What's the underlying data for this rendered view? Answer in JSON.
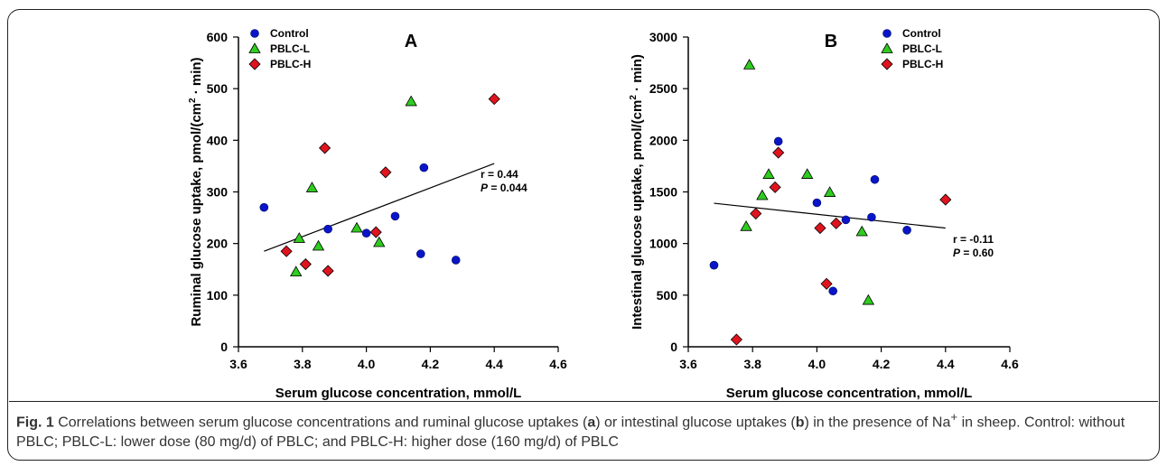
{
  "chart_data": [
    {
      "type": "scatter",
      "panel_label": "A",
      "xlabel": "Serum glucose concentration, mmol/L",
      "ylabel": "Ruminal glucose uptake, pmol/(cm",
      "ylabel_sup": "2",
      "ylabel_tail": " · min)",
      "xlim": [
        3.6,
        4.6
      ],
      "ylim": [
        0,
        600
      ],
      "xticks": [
        "3.6",
        "3.8",
        "4.0",
        "4.2",
        "4.4",
        "4.6"
      ],
      "yticks": [
        "0",
        "100",
        "200",
        "300",
        "400",
        "500",
        "600"
      ],
      "legend_position": "top-left",
      "annotation": {
        "r_label": "r = 0.44",
        "p_prefix": "P",
        "p_value": " = 0.044"
      },
      "fit_line": {
        "x": [
          3.68,
          4.4
        ],
        "y": [
          185,
          355
        ]
      },
      "series": [
        {
          "name": "Control",
          "marker": "circle",
          "color": "#0a14c8",
          "points": [
            [
              3.68,
              270
            ],
            [
              3.88,
              228
            ],
            [
              4.0,
              220
            ],
            [
              4.09,
              253
            ],
            [
              4.17,
              180
            ],
            [
              4.18,
              347
            ],
            [
              4.28,
              168
            ]
          ]
        },
        {
          "name": "PBLC-L",
          "marker": "triangle",
          "color": "#2ecc1e",
          "points": [
            [
              3.78,
              145
            ],
            [
              3.79,
              210
            ],
            [
              3.83,
              308
            ],
            [
              3.85,
              195
            ],
            [
              3.97,
              230
            ],
            [
              4.04,
              202
            ],
            [
              4.14,
              475
            ]
          ]
        },
        {
          "name": "PBLC-H",
          "marker": "diamond",
          "color": "#e0141e",
          "points": [
            [
              3.75,
              185
            ],
            [
              3.81,
              160
            ],
            [
              3.87,
              385
            ],
            [
              3.88,
              147
            ],
            [
              4.03,
              222
            ],
            [
              4.06,
              338
            ],
            [
              4.4,
              480
            ]
          ]
        }
      ]
    },
    {
      "type": "scatter",
      "panel_label": "B",
      "xlabel": "Serum glucose concentration, mmol/L",
      "ylabel": "Intestinal glucose uptake, pmol/(cm",
      "ylabel_sup": "2",
      "ylabel_tail": " · min)",
      "xlim": [
        3.6,
        4.6
      ],
      "ylim": [
        0,
        3000
      ],
      "xticks": [
        "3.6",
        "3.8",
        "4.0",
        "4.2",
        "4.4",
        "4.6"
      ],
      "yticks": [
        "0",
        "500",
        "1000",
        "1500",
        "2000",
        "2500",
        "3000"
      ],
      "legend_position": "top-right",
      "annotation": {
        "r_label": "r = -0.11",
        "p_prefix": "P",
        "p_value": " = 0.60"
      },
      "fit_line": {
        "x": [
          3.68,
          4.4
        ],
        "y": [
          1390,
          1150
        ]
      },
      "series": [
        {
          "name": "Control",
          "marker": "circle",
          "color": "#0a14c8",
          "points": [
            [
              3.68,
              790
            ],
            [
              3.88,
              1990
            ],
            [
              4.0,
              1395
            ],
            [
              4.05,
              540
            ],
            [
              4.09,
              1230
            ],
            [
              4.17,
              1255
            ],
            [
              4.18,
              1620
            ],
            [
              4.28,
              1130
            ]
          ]
        },
        {
          "name": "PBLC-L",
          "marker": "triangle",
          "color": "#2ecc1e",
          "points": [
            [
              3.78,
              1165
            ],
            [
              3.79,
              2730
            ],
            [
              3.83,
              1465
            ],
            [
              3.85,
              1670
            ],
            [
              3.97,
              1670
            ],
            [
              4.04,
              1495
            ],
            [
              4.14,
              1115
            ],
            [
              4.16,
              450
            ]
          ]
        },
        {
          "name": "PBLC-H",
          "marker": "diamond",
          "color": "#e0141e",
          "points": [
            [
              3.75,
              70
            ],
            [
              3.81,
              1290
            ],
            [
              3.87,
              1545
            ],
            [
              3.88,
              1880
            ],
            [
              4.01,
              1150
            ],
            [
              4.03,
              610
            ],
            [
              4.06,
              1195
            ],
            [
              4.4,
              1425
            ]
          ]
        }
      ]
    }
  ],
  "caption": {
    "fig_label": "Fig. 1",
    "part1": " Correlations between serum glucose concentrations and ruminal glucose uptakes (",
    "a": "a",
    "part2": ") or intestinal glucose uptakes (",
    "b": "b",
    "part3": ") in the presence of Na",
    "sup": "+",
    "part4": " in sheep. Control: without PBLC; PBLC-L: lower dose (80 mg/d) of PBLC; and PBLC-H: higher dose (160 mg/d) of PBLC"
  }
}
